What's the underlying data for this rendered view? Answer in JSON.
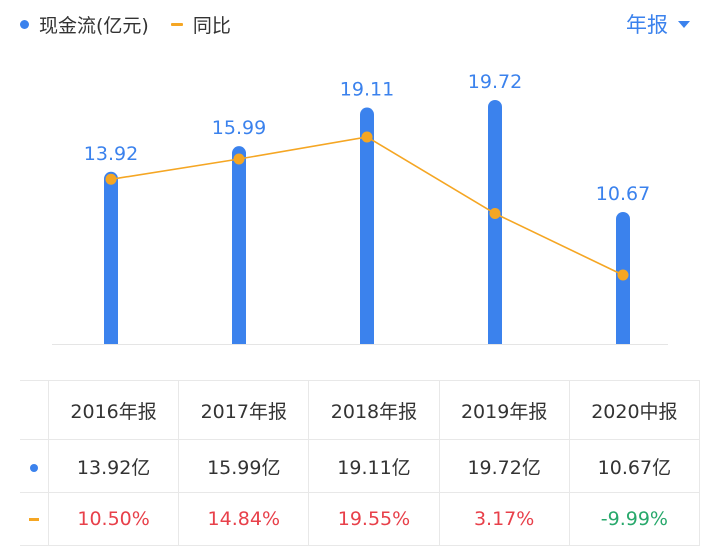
{
  "legend": {
    "bar_name": "现金流(亿元)",
    "line_name": "同比"
  },
  "period_selector": {
    "label": "年报"
  },
  "colors": {
    "bar": "#3b82ed",
    "line": "#f5a623",
    "positive": "#e8404a",
    "negative": "#27a86b",
    "accent": "#3b82ed"
  },
  "chart_data": {
    "type": "bar",
    "categories": [
      "2016年报",
      "2017年报",
      "2018年报",
      "2019年报",
      "2020中报"
    ],
    "series": [
      {
        "name": "现金流(亿元)",
        "type": "bar",
        "values": [
          13.92,
          15.99,
          19.11,
          19.72,
          10.67
        ]
      },
      {
        "name": "同比",
        "type": "line",
        "values": [
          10.5,
          14.84,
          19.55,
          3.17,
          -9.99
        ]
      }
    ],
    "bar_labels": [
      "13.92",
      "15.99",
      "19.11",
      "19.72",
      "10.67"
    ],
    "legend_position": "top-left",
    "grid": false
  },
  "table": {
    "headers": [
      "2016年报",
      "2017年报",
      "2018年报",
      "2019年报",
      "2020中报"
    ],
    "bar_row": [
      "13.92亿",
      "15.99亿",
      "19.11亿",
      "19.72亿",
      "10.67亿"
    ],
    "line_row": [
      "10.50%",
      "14.84%",
      "19.55%",
      "3.17%",
      "-9.99%"
    ]
  }
}
